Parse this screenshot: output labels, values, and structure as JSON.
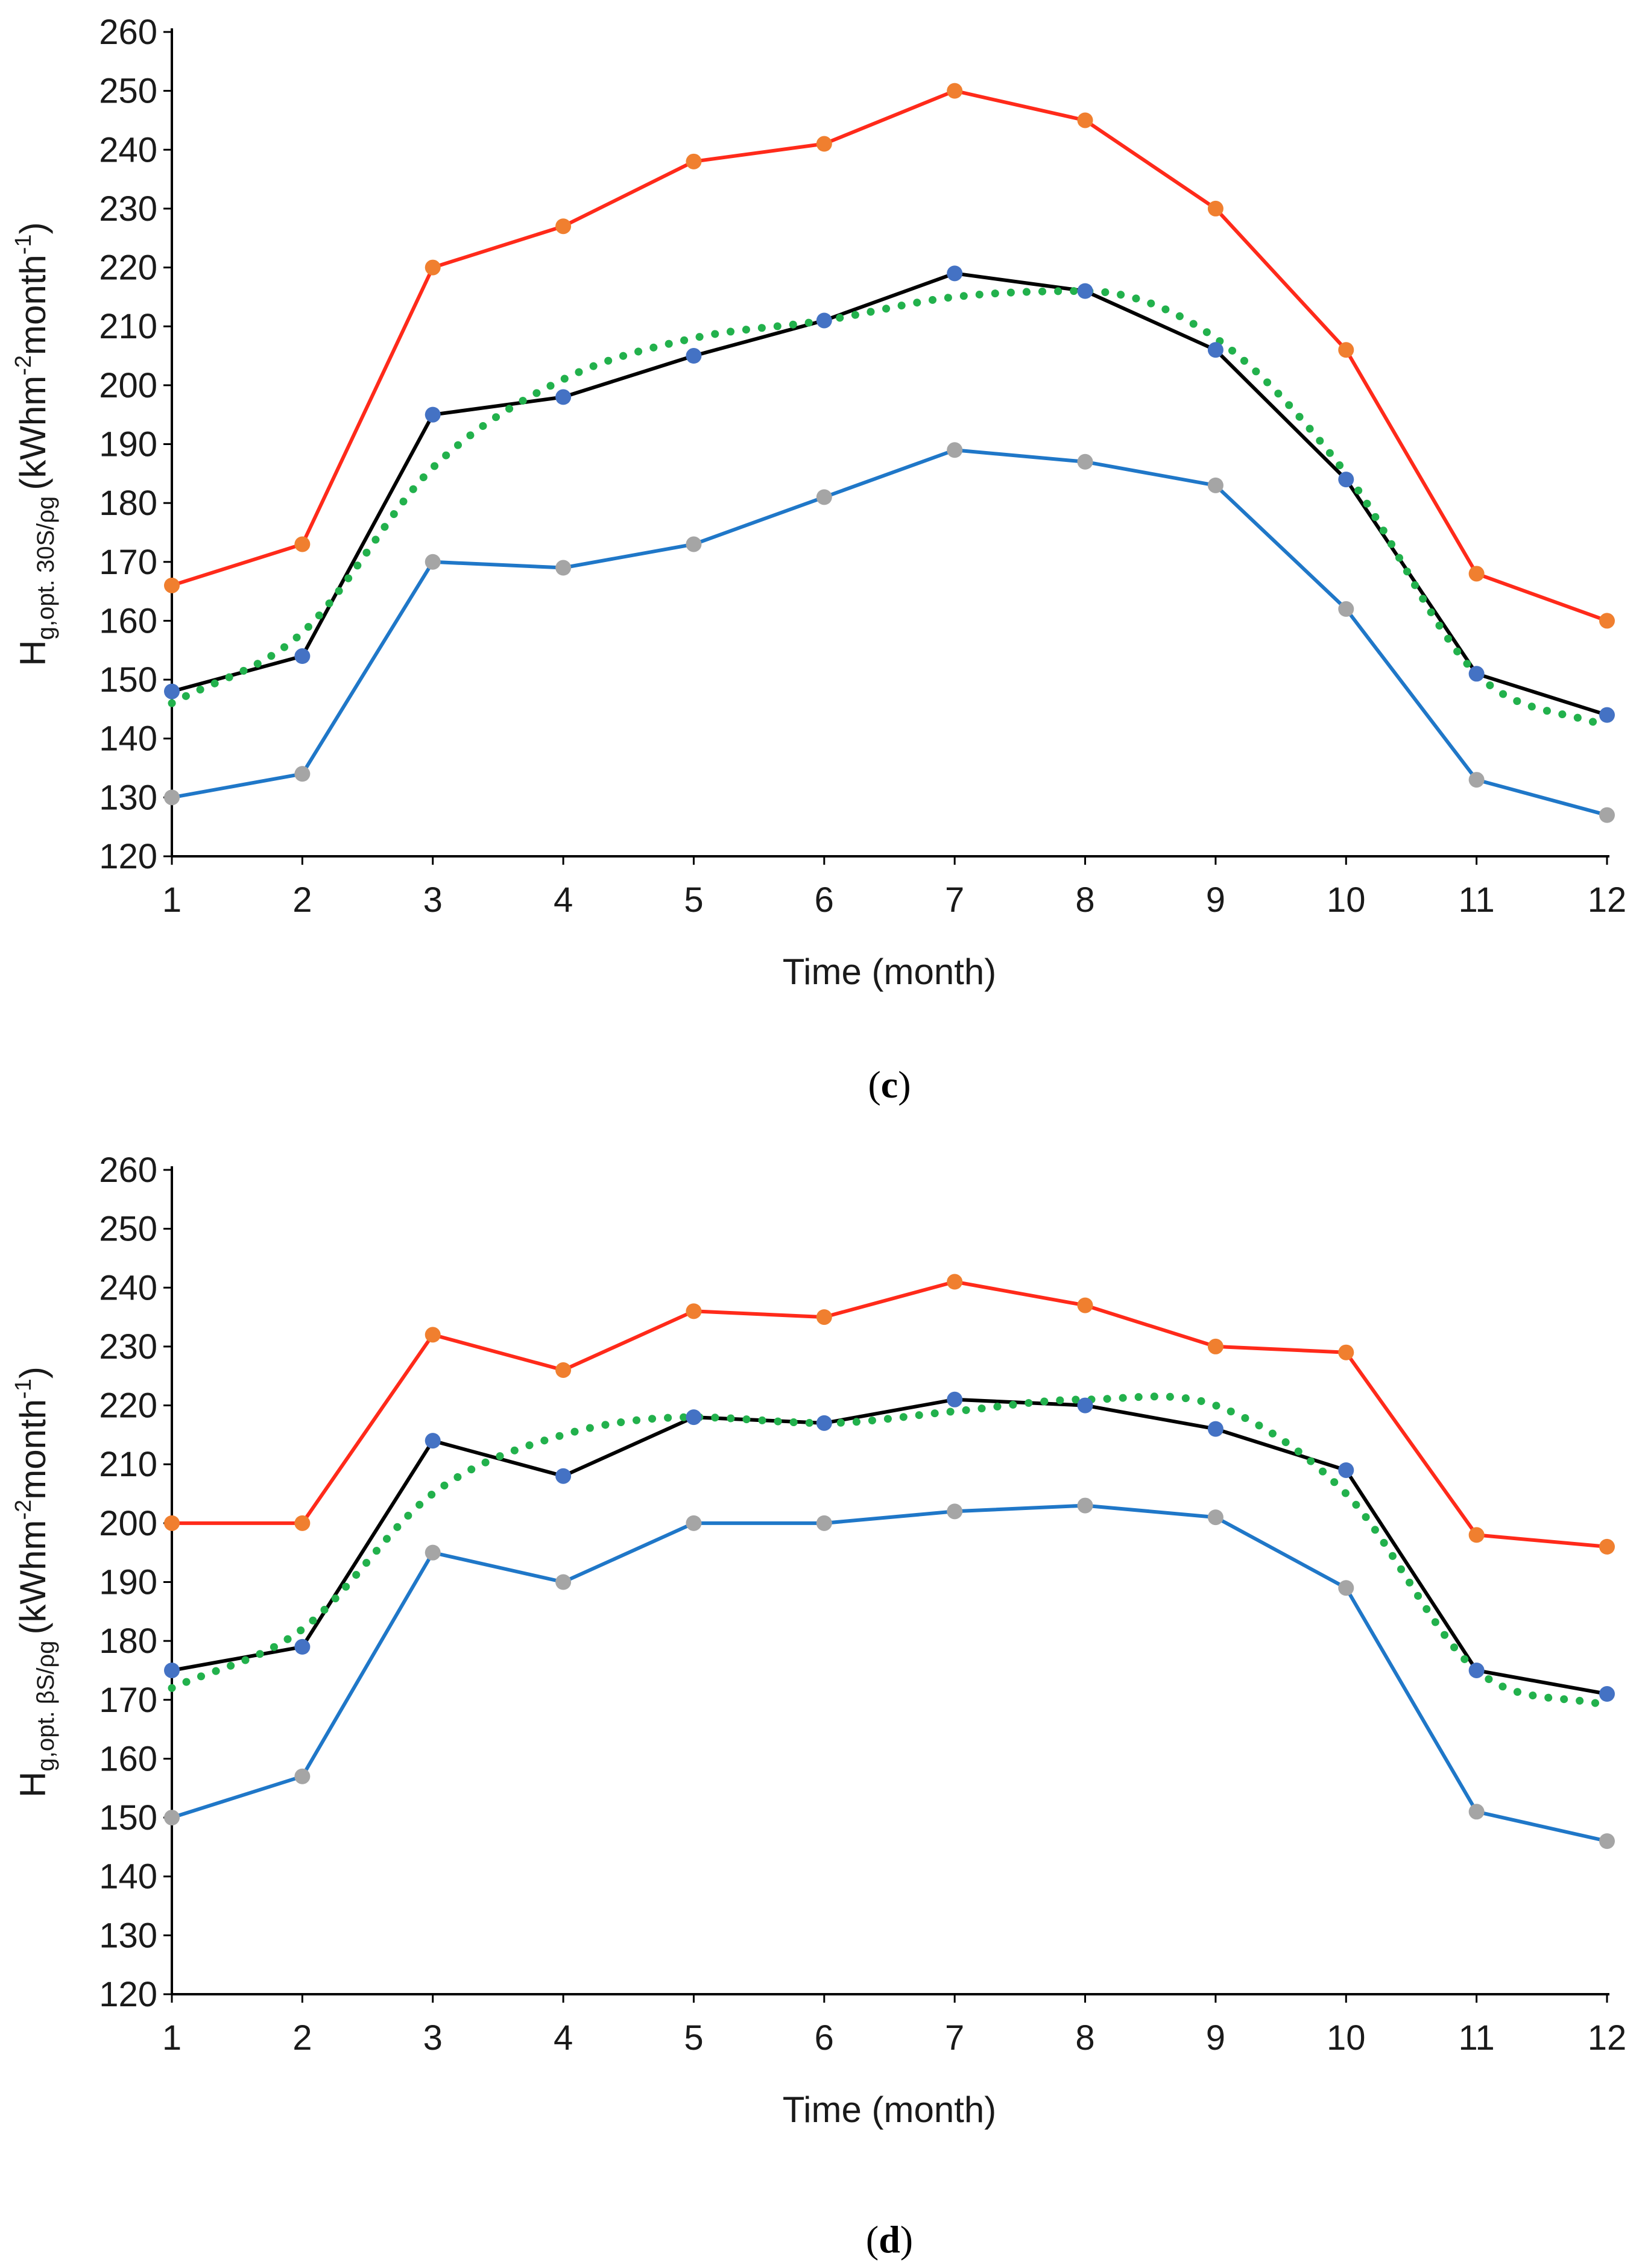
{
  "chart_data": [
    {
      "type": "line",
      "panel_label": "c",
      "xlabel": "Time (month)",
      "ylabel": {
        "base": "H",
        "sub": "g,opt. 30S/ρg",
        "unit_open": "(kWhm",
        "unit_exp1": "-2",
        "unit_mid": "month",
        "unit_exp2": "-1",
        "unit_close": ")"
      },
      "x": [
        1,
        2,
        3,
        4,
        5,
        6,
        7,
        8,
        9,
        10,
        11,
        12
      ],
      "xlim": [
        1,
        12
      ],
      "ylim": [
        120,
        260
      ],
      "yticks": [
        120,
        130,
        140,
        150,
        160,
        170,
        180,
        190,
        200,
        210,
        220,
        230,
        240,
        250,
        260
      ],
      "grid": false,
      "series": [
        {
          "values": [
            166,
            173,
            220,
            227,
            238,
            241,
            250,
            245,
            230,
            206,
            168,
            160
          ],
          "line_color": "#ff2a1a",
          "marker_color": "#f07f2f",
          "style": "solid"
        },
        {
          "values": [
            148,
            154,
            195,
            198,
            205,
            211,
            219,
            216,
            206,
            184,
            151,
            144
          ],
          "line_color": "#000000",
          "marker_color": "#4472c4",
          "style": "solid"
        },
        {
          "values": [
            130,
            134,
            170,
            169,
            173,
            181,
            189,
            187,
            183,
            162,
            133,
            127
          ],
          "line_color": "#1f77c8",
          "marker_color": "#a5a5a5",
          "style": "solid"
        },
        {
          "values": [
            146,
            158,
            186,
            201,
            208,
            211,
            215,
            216,
            208,
            185,
            151,
            142
          ],
          "line_color": "#22b14c",
          "style": "dotted",
          "kind": "trend"
        }
      ]
    },
    {
      "type": "line",
      "panel_label": "d",
      "xlabel": "Time (month)",
      "ylabel": {
        "base": "H",
        "sub": "g,opt. βS/ρg",
        "unit_open": "(kWhm",
        "unit_exp1": "-2",
        "unit_mid": "month",
        "unit_exp2": "-1",
        "unit_close": ")"
      },
      "x": [
        1,
        2,
        3,
        4,
        5,
        6,
        7,
        8,
        9,
        10,
        11,
        12
      ],
      "xlim": [
        1,
        12
      ],
      "ylim": [
        120,
        260
      ],
      "yticks": [
        120,
        130,
        140,
        150,
        160,
        170,
        180,
        190,
        200,
        210,
        220,
        230,
        240,
        250,
        260
      ],
      "grid": false,
      "series": [
        {
          "values": [
            200,
            200,
            232,
            226,
            236,
            235,
            241,
            237,
            230,
            229,
            198,
            196
          ],
          "line_color": "#ff2a1a",
          "marker_color": "#f07f2f",
          "style": "solid"
        },
        {
          "values": [
            175,
            179,
            214,
            208,
            218,
            217,
            221,
            220,
            216,
            209,
            175,
            171
          ],
          "line_color": "#000000",
          "marker_color": "#4472c4",
          "style": "solid"
        },
        {
          "values": [
            150,
            157,
            195,
            190,
            200,
            200,
            202,
            203,
            201,
            189,
            151,
            146
          ],
          "line_color": "#1f77c8",
          "marker_color": "#a5a5a5",
          "style": "solid"
        },
        {
          "values": [
            172,
            182,
            205,
            215,
            218,
            217,
            219,
            221,
            220,
            205,
            175,
            169
          ],
          "line_color": "#22b14c",
          "style": "dotted",
          "kind": "trend"
        }
      ]
    }
  ]
}
